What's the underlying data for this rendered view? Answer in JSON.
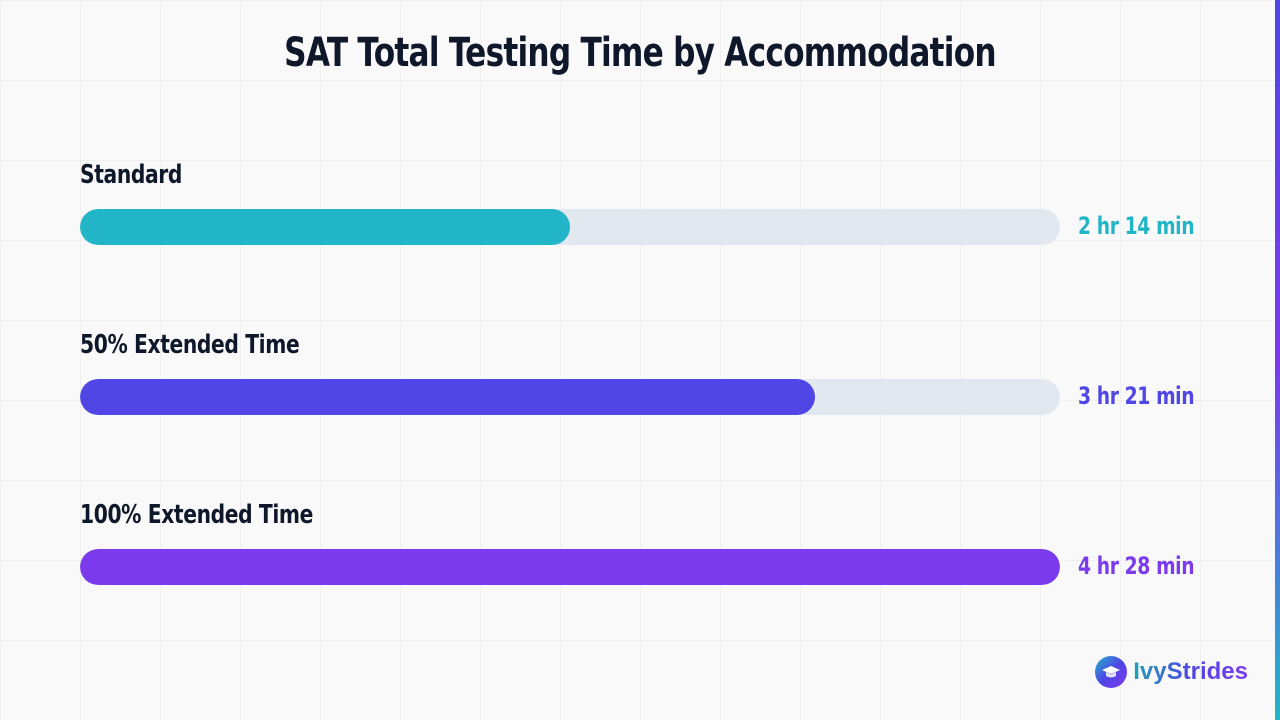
{
  "chart_data": {
    "type": "bar",
    "orientation": "horizontal",
    "title": "SAT Total Testing Time by Accommodation",
    "categories": [
      "Standard",
      "50% Extended Time",
      "100% Extended Time"
    ],
    "values": [
      134,
      201,
      268
    ],
    "value_labels": [
      "2 hr 14 min",
      "3 hr 21 min",
      "4 hr 28 min"
    ],
    "colors": [
      "#22b5c8",
      "#4f46e5",
      "#7c3aed"
    ],
    "xlim": [
      0,
      268
    ],
    "grid": false,
    "legend": "none"
  },
  "brand": {
    "name": "IvyStrides",
    "icon": "graduation-cap-icon"
  }
}
